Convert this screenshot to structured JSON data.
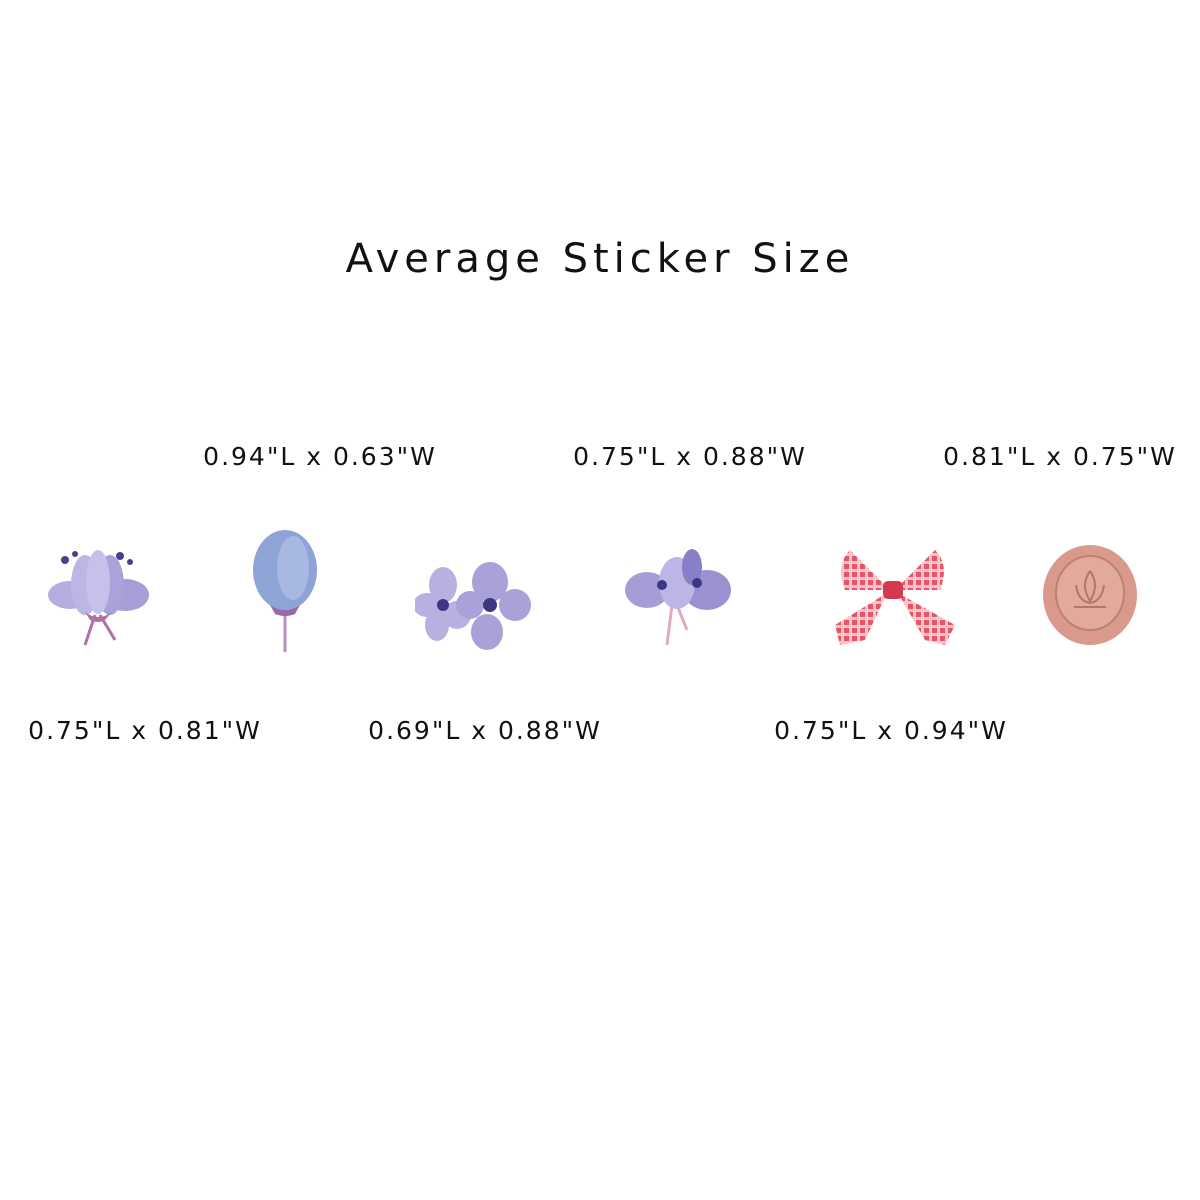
{
  "title": "Average Sticker Size",
  "stickers": [
    {
      "name": "purple-anemone",
      "size": "0.75\"L x 0.81\"W"
    },
    {
      "name": "blue-tulip-bud",
      "size": "0.94\"L x 0.63\"W"
    },
    {
      "name": "twin-violets",
      "size": "0.69\"L x 0.88\"W"
    },
    {
      "name": "anemone-cluster",
      "size": "0.75\"L x 0.88\"W"
    },
    {
      "name": "red-gingham-bow",
      "size": "0.75\"L x 0.94\"W"
    },
    {
      "name": "pink-wax-seal",
      "size": "0.81\"L x 0.75\"W"
    }
  ],
  "colors": {
    "lavender": "#a9a3d8",
    "blue": "#8fa4d6",
    "red": "#e0465a",
    "seal": "#d99a8c"
  }
}
